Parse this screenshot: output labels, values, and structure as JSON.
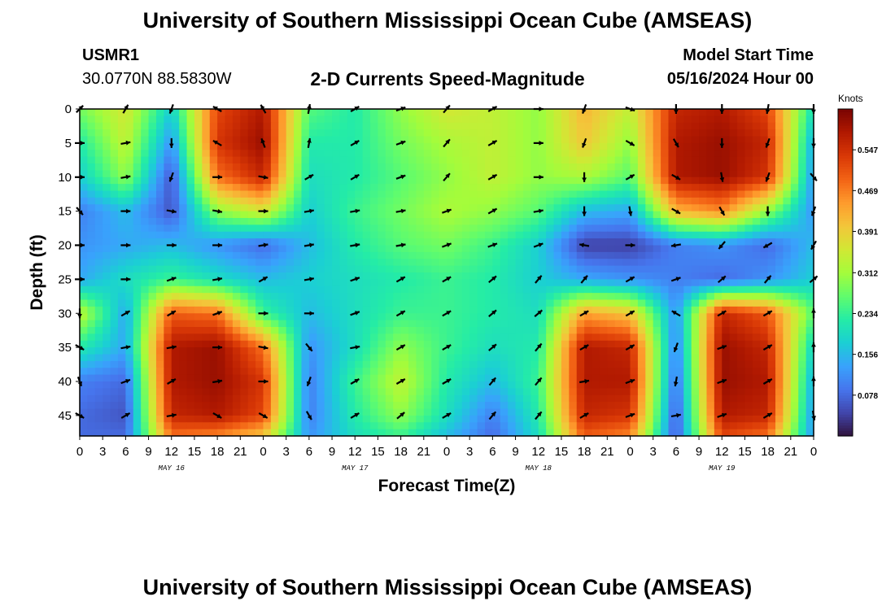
{
  "header": {
    "title": "University of Southern Mississippi Ocean Cube (AMSEAS)",
    "station_id": "USMR1",
    "station_coords": "30.0770N  88.5830W",
    "plot_title": "2-D Currents Speed-Magnitude",
    "model_start_label": "Model Start Time",
    "model_start_value": "05/16/2024 Hour 00"
  },
  "footer": {
    "title": "University of Southern Mississippi Ocean Cube (AMSEAS)"
  },
  "chart_data": {
    "type": "heatmap",
    "title": "2-D Currents Speed-Magnitude",
    "xlabel": "Forecast Time(Z)",
    "ylabel": "Depth (ft)",
    "x_ticks": [
      "0",
      "3",
      "6",
      "9",
      "12",
      "15",
      "18",
      "21",
      "0",
      "3",
      "6",
      "9",
      "12",
      "15",
      "18",
      "21",
      "0",
      "3",
      "6",
      "9",
      "12",
      "15",
      "18",
      "21",
      "0",
      "3",
      "6",
      "9",
      "12",
      "15",
      "18",
      "21",
      "0"
    ],
    "x_range_hours": [
      0,
      96
    ],
    "date_labels": [
      {
        "label": "MAY 16",
        "hour": 12
      },
      {
        "label": "MAY 17",
        "hour": 36
      },
      {
        "label": "MAY 18",
        "hour": 60
      },
      {
        "label": "MAY 19",
        "hour": 84
      }
    ],
    "y_ticks": [
      "0",
      "5",
      "10",
      "15",
      "20",
      "25",
      "30",
      "35",
      "40",
      "45"
    ],
    "y_range_ft": [
      0,
      48
    ],
    "colorbar": {
      "unit": "Knots",
      "range": [
        0.0,
        0.625
      ],
      "ticks": [
        "0.078",
        "0.156",
        "0.234",
        "0.312",
        "0.391",
        "0.469",
        "0.547"
      ]
    },
    "colormap": [
      "#30123b",
      "#4145ab",
      "#4675ed",
      "#39a2fc",
      "#1bcfd4",
      "#24eca6",
      "#61fc6c",
      "#a4fc3b",
      "#d1e834",
      "#f3c63a",
      "#fe9b2d",
      "#f36315",
      "#d93806",
      "#b11901",
      "#7a0402"
    ],
    "depths_ft": [
      0,
      5,
      10,
      15,
      20,
      25,
      30,
      35,
      40,
      45,
      48
    ],
    "times_h": [
      0,
      6,
      12,
      18,
      24,
      30,
      36,
      42,
      48,
      54,
      60,
      66,
      72,
      78,
      84,
      90,
      96
    ],
    "speed_knots": [
      [
        0.28,
        0.36,
        0.18,
        0.52,
        0.58,
        0.26,
        0.22,
        0.3,
        0.36,
        0.34,
        0.3,
        0.42,
        0.34,
        0.56,
        0.58,
        0.52,
        0.2
      ],
      [
        0.22,
        0.34,
        0.12,
        0.54,
        0.6,
        0.22,
        0.22,
        0.28,
        0.32,
        0.34,
        0.3,
        0.4,
        0.3,
        0.58,
        0.6,
        0.56,
        0.14
      ],
      [
        0.18,
        0.3,
        0.06,
        0.48,
        0.56,
        0.2,
        0.22,
        0.26,
        0.3,
        0.34,
        0.3,
        0.32,
        0.26,
        0.58,
        0.6,
        0.54,
        0.12
      ],
      [
        0.1,
        0.16,
        0.06,
        0.3,
        0.36,
        0.18,
        0.24,
        0.28,
        0.32,
        0.3,
        0.26,
        0.16,
        0.14,
        0.42,
        0.46,
        0.3,
        0.12
      ],
      [
        0.12,
        0.14,
        0.16,
        0.12,
        0.08,
        0.16,
        0.22,
        0.26,
        0.28,
        0.24,
        0.18,
        0.04,
        0.04,
        0.1,
        0.12,
        0.08,
        0.16
      ],
      [
        0.14,
        0.2,
        0.24,
        0.2,
        0.16,
        0.18,
        0.2,
        0.22,
        0.24,
        0.22,
        0.18,
        0.14,
        0.12,
        0.1,
        0.08,
        0.12,
        0.18
      ],
      [
        0.34,
        0.14,
        0.5,
        0.48,
        0.24,
        0.16,
        0.2,
        0.24,
        0.24,
        0.22,
        0.2,
        0.44,
        0.4,
        0.12,
        0.56,
        0.5,
        0.26
      ],
      [
        0.22,
        0.14,
        0.58,
        0.6,
        0.48,
        0.12,
        0.2,
        0.3,
        0.24,
        0.2,
        0.22,
        0.58,
        0.56,
        0.1,
        0.6,
        0.56,
        0.18
      ],
      [
        0.1,
        0.08,
        0.58,
        0.6,
        0.54,
        0.1,
        0.24,
        0.34,
        0.22,
        0.16,
        0.24,
        0.58,
        0.58,
        0.08,
        0.6,
        0.58,
        0.14
      ],
      [
        0.08,
        0.06,
        0.56,
        0.58,
        0.52,
        0.1,
        0.22,
        0.3,
        0.2,
        0.1,
        0.22,
        0.56,
        0.54,
        0.06,
        0.58,
        0.56,
        0.12
      ],
      [
        0.08,
        0.08,
        0.48,
        0.46,
        0.4,
        0.12,
        0.2,
        0.24,
        0.16,
        0.08,
        0.2,
        0.5,
        0.46,
        0.06,
        0.52,
        0.48,
        0.12
      ]
    ],
    "direction_deg": [
      [
        45,
        30,
        200,
        300,
        330,
        10,
        60,
        70,
        40,
        60,
        90,
        200,
        110,
        180,
        180,
        190,
        180
      ],
      [
        90,
        80,
        180,
        300,
        340,
        10,
        60,
        70,
        40,
        60,
        90,
        200,
        120,
        150,
        180,
        200,
        180
      ],
      [
        90,
        80,
        200,
        90,
        100,
        60,
        60,
        70,
        40,
        60,
        90,
        180,
        60,
        120,
        170,
        200,
        140
      ],
      [
        140,
        90,
        100,
        100,
        90,
        80,
        80,
        80,
        70,
        60,
        80,
        180,
        170,
        120,
        150,
        180,
        200
      ],
      [
        90,
        90,
        90,
        90,
        80,
        80,
        80,
        80,
        70,
        70,
        70,
        280,
        90,
        260,
        220,
        240,
        210
      ],
      [
        90,
        90,
        70,
        80,
        60,
        80,
        70,
        60,
        60,
        50,
        40,
        40,
        60,
        70,
        50,
        40,
        50
      ],
      [
        180,
        60,
        60,
        70,
        90,
        90,
        70,
        60,
        60,
        50,
        50,
        60,
        60,
        300,
        60,
        60,
        0
      ],
      [
        120,
        80,
        80,
        90,
        100,
        140,
        80,
        60,
        60,
        50,
        40,
        60,
        60,
        200,
        70,
        60,
        0
      ],
      [
        160,
        70,
        60,
        80,
        90,
        200,
        60,
        60,
        60,
        40,
        40,
        80,
        70,
        190,
        70,
        60,
        0
      ],
      [
        120,
        60,
        80,
        120,
        120,
        150,
        60,
        50,
        60,
        40,
        40,
        60,
        70,
        80,
        70,
        60,
        170
      ],
      [
        120,
        60,
        80,
        120,
        120,
        150,
        60,
        50,
        60,
        40,
        40,
        60,
        70,
        80,
        70,
        60,
        170
      ]
    ]
  }
}
